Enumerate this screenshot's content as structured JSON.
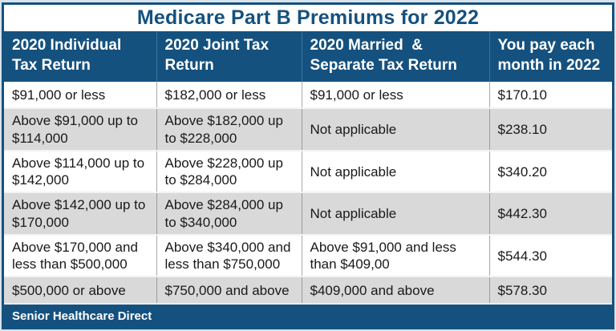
{
  "colors": {
    "navy": "#15517e",
    "alt_row_bg": "#d9d9d9",
    "page_bg": "#d9e3ec",
    "body_text": "#191919",
    "header_text": "#ffffff"
  },
  "chart_data": {
    "type": "table",
    "title": "Medicare Part B Premiums for 2022",
    "columns": [
      "2020 Individual Tax Return",
      "2020 Joint Tax Return",
      "2020 Married  & Separate Tax Return",
      "You pay each month in 2022"
    ],
    "rows": [
      [
        "$91,000 or less",
        "$182,000 or less",
        "$91,000 or less",
        "$170.10"
      ],
      [
        "Above $91,000 up to $114,000",
        "Above $182,000 up to $228,000",
        "Not applicable",
        "$238.10"
      ],
      [
        "Above $114,000 up to $142,000",
        "Above $228,000 up to $284,000",
        "Not applicable",
        "$340.20"
      ],
      [
        "Above $142,000 up to $170,000",
        "Above $284,000 up to $340,000",
        "Not applicable",
        "$442.30"
      ],
      [
        "Above $170,000 and less than $500,000",
        "Above $340,000 and less than $750,000",
        "Above $91,000 and less than $409,00",
        "$544.30"
      ],
      [
        "$500,000 or above",
        "$750,000 and above",
        "$409,000 and above",
        "$578.30"
      ]
    ],
    "footer": "Senior Healthcare Direct",
    "layout": {
      "legend": "none",
      "grid": "table-borders",
      "alternating_rows": true
    }
  }
}
